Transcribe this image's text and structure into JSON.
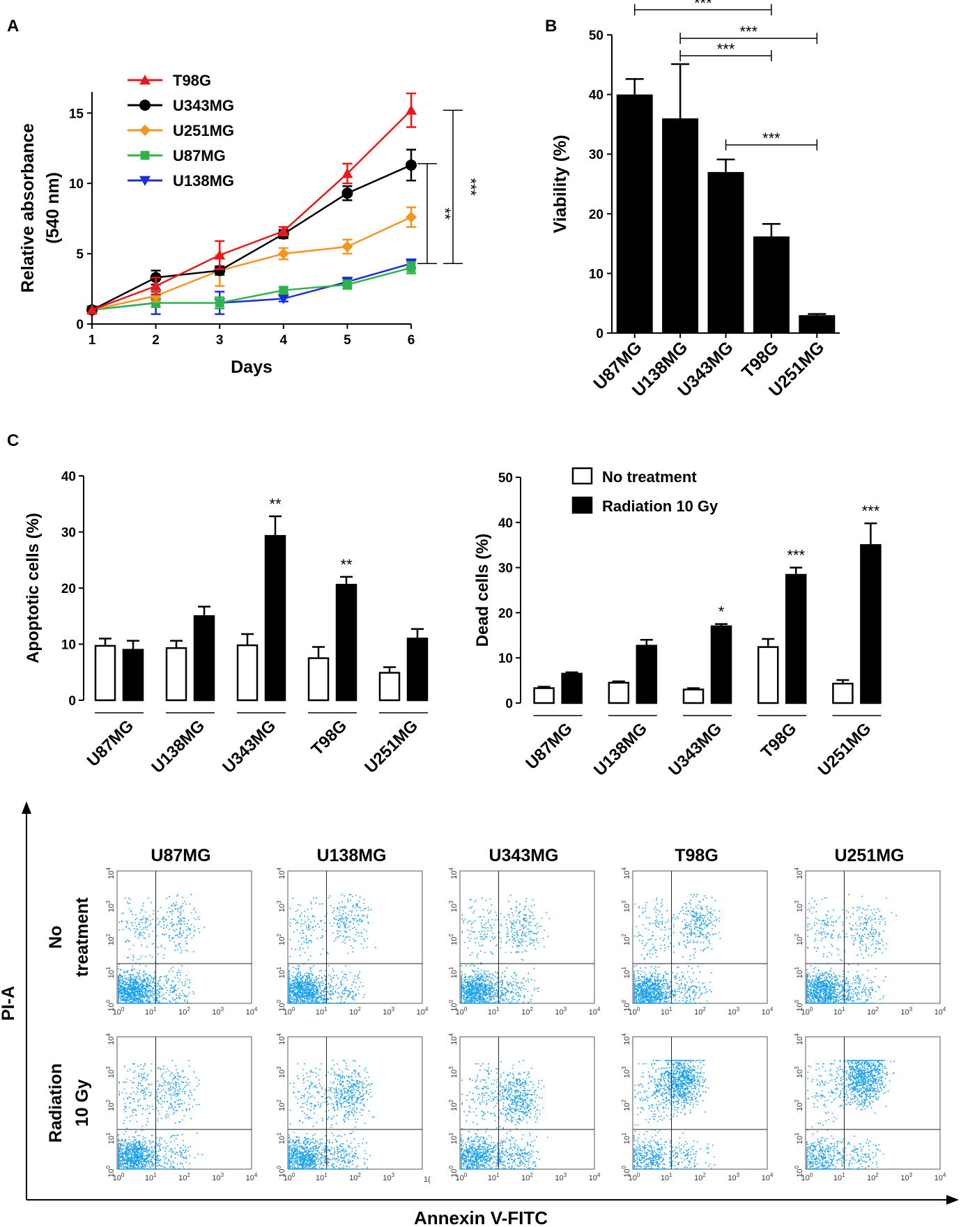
{
  "panel_labels": {
    "a": "A",
    "b": "B",
    "c": "C"
  },
  "colors": {
    "T98G": "#e8191a",
    "U343MG": "#000000",
    "U251MG": "#f7941d",
    "U87MG": "#2db34a",
    "U138MG": "#1c2fd6",
    "flow_dot": "#1aa0ee",
    "axis": "#000000"
  },
  "chart_data": [
    {
      "id": "A",
      "type": "line",
      "title": "",
      "xlabel": "Days",
      "ylabel_lines": [
        "Relative absorbance",
        "(540 nm)"
      ],
      "x": [
        1,
        2,
        3,
        4,
        5,
        6
      ],
      "xlim": [
        1,
        6
      ],
      "ylim": [
        0,
        16.5
      ],
      "yticks": [
        0,
        5,
        10,
        15
      ],
      "series": [
        {
          "name": "T98G",
          "marker": "triangle-up",
          "values": [
            1,
            2.7,
            4.9,
            6.6,
            10.7,
            15.2
          ],
          "errors": [
            0,
            0.6,
            1.0,
            0.3,
            0.7,
            1.2
          ]
        },
        {
          "name": "U343MG",
          "marker": "circle",
          "values": [
            1,
            3.3,
            3.8,
            6.4,
            9.3,
            11.3
          ],
          "errors": [
            0,
            0.5,
            0.3,
            0.3,
            0.5,
            1.1
          ]
        },
        {
          "name": "U251MG",
          "marker": "diamond",
          "values": [
            1,
            2.0,
            3.8,
            5.0,
            5.5,
            7.6
          ],
          "errors": [
            0,
            0.4,
            1.1,
            0.4,
            0.5,
            0.7
          ]
        },
        {
          "name": "U87MG",
          "marker": "square",
          "values": [
            1,
            1.5,
            1.5,
            2.4,
            2.8,
            4.0
          ],
          "errors": [
            0,
            0.3,
            0.4,
            0.2,
            0.3,
            0.4
          ]
        },
        {
          "name": "U138MG",
          "marker": "triangle-down",
          "values": [
            1,
            1.5,
            1.5,
            1.8,
            3.0,
            4.3
          ],
          "errors": [
            0,
            0.8,
            0.8,
            0.2,
            0.3,
            0.3
          ]
        }
      ],
      "brackets": [
        {
          "from": 4.3,
          "to": 11.4,
          "label": "**"
        },
        {
          "from": 4.3,
          "to": 15.2,
          "label": "***"
        }
      ]
    },
    {
      "id": "B",
      "type": "bar",
      "title": "",
      "xlabel": "",
      "ylabel": "Viability (%)",
      "categories": [
        "U87MG",
        "U138MG",
        "U343MG",
        "T98G",
        "U251MG"
      ],
      "values": [
        40,
        36,
        27,
        16.2,
        3
      ],
      "errors": [
        2.6,
        9.1,
        2.1,
        2.1,
        0.2
      ],
      "ylim": [
        0,
        50
      ],
      "yticks": [
        0,
        10,
        20,
        30,
        40,
        50
      ],
      "brackets": [
        {
          "from": "U87MG",
          "to": "T98G",
          "label": "***"
        },
        {
          "from": "U138MG",
          "to": "U251MG",
          "label": "***"
        },
        {
          "from": "U138MG",
          "to": "T98G",
          "label": "***"
        },
        {
          "from": "U343MG",
          "to": "U251MG",
          "label": "***"
        }
      ]
    },
    {
      "id": "C-apoptotic",
      "type": "bar",
      "title": "",
      "xlabel": "",
      "ylabel": "Apoptotic cells (%)",
      "categories": [
        "U87MG",
        "U138MG",
        "U343MG",
        "T98G",
        "U251MG"
      ],
      "series": [
        {
          "name": "No treatment",
          "values": [
            9.7,
            9.3,
            9.8,
            7.5,
            4.9
          ],
          "errors": [
            1.3,
            1.3,
            2.0,
            2.0,
            1.0
          ]
        },
        {
          "name": "Radiation 10 Gy",
          "values": [
            9.0,
            15.0,
            29.3,
            20.6,
            11.0
          ],
          "errors": [
            1.6,
            1.7,
            3.5,
            1.4,
            1.7
          ]
        }
      ],
      "significance": [
        "",
        "",
        "**",
        "**",
        ""
      ],
      "ylim": [
        0,
        40
      ],
      "yticks": [
        0,
        10,
        20,
        30,
        40
      ]
    },
    {
      "id": "C-dead",
      "type": "bar",
      "title": "",
      "xlabel": "",
      "ylabel": "Dead cells (%)",
      "categories": [
        "U87MG",
        "U138MG",
        "U343MG",
        "T98G",
        "U251MG"
      ],
      "series": [
        {
          "name": "No treatment",
          "values": [
            3.3,
            4.5,
            3.0,
            12.4,
            4.3
          ],
          "errors": [
            0.3,
            0.3,
            0.3,
            1.8,
            0.8
          ]
        },
        {
          "name": "Radiation 10 Gy",
          "values": [
            6.5,
            12.7,
            17.0,
            28.4,
            35.0
          ],
          "errors": [
            0.3,
            1.3,
            0.5,
            1.6,
            4.8
          ]
        }
      ],
      "significance": [
        "",
        "",
        "*",
        "***",
        "***"
      ],
      "ylim": [
        0,
        50
      ],
      "yticks": [
        0,
        10,
        20,
        30,
        40,
        50
      ],
      "legend": [
        "No treatment",
        "Radiation 10 Gy"
      ]
    },
    {
      "id": "C-flow",
      "type": "scatter",
      "xlabel": "Annexin V-FITC",
      "ylabel": "PI-A",
      "columns": [
        "U87MG",
        "U138MG",
        "U343MG",
        "T98G",
        "U251MG"
      ],
      "row_labels": [
        [
          "No",
          "treatment"
        ],
        [
          "Radiation",
          "10 Gy"
        ]
      ],
      "log_ticks": [
        "0",
        "1",
        "2",
        "3",
        "4"
      ],
      "log_base": "10",
      "last_x_tick_label": "10",
      "last_x_tick_exp": "4",
      "truncated_x_tick_label": "1(",
      "quadrant_gate_log": {
        "x": 1.15,
        "y": 1.2
      },
      "populations": [
        [
          {
            "ll": 0.7,
            "lr": 0.1,
            "ul": 0.08,
            "ur": 0.12,
            "ur_center": [
              1.8,
              2.4
            ]
          },
          {
            "ll": 0.7,
            "lr": 0.1,
            "ul": 0.07,
            "ur": 0.13,
            "ur_center": [
              1.8,
              2.5
            ]
          },
          {
            "ll": 0.68,
            "lr": 0.1,
            "ul": 0.08,
            "ur": 0.14,
            "ur_center": [
              1.8,
              2.3
            ]
          },
          {
            "ll": 0.64,
            "lr": 0.1,
            "ul": 0.08,
            "ur": 0.18,
            "ur_center": [
              1.9,
              2.4
            ]
          },
          {
            "ll": 0.68,
            "lr": 0.12,
            "ul": 0.08,
            "ur": 0.12,
            "ur_center": [
              1.8,
              2.2
            ]
          }
        ],
        [
          {
            "ll": 0.66,
            "lr": 0.1,
            "ul": 0.1,
            "ur": 0.14,
            "ur_center": [
              1.7,
              2.4
            ]
          },
          {
            "ll": 0.52,
            "lr": 0.14,
            "ul": 0.08,
            "ur": 0.26,
            "ur_center": [
              1.8,
              2.3
            ]
          },
          {
            "ll": 0.46,
            "lr": 0.16,
            "ul": 0.08,
            "ur": 0.3,
            "ur_center": [
              1.7,
              2.2
            ]
          },
          {
            "ll": 0.26,
            "lr": 0.08,
            "ul": 0.1,
            "ur": 0.56,
            "ur_center": [
              1.4,
              2.7
            ]
          },
          {
            "ll": 0.26,
            "lr": 0.08,
            "ul": 0.08,
            "ur": 0.58,
            "ur_center": [
              1.7,
              2.8
            ]
          }
        ]
      ]
    }
  ]
}
